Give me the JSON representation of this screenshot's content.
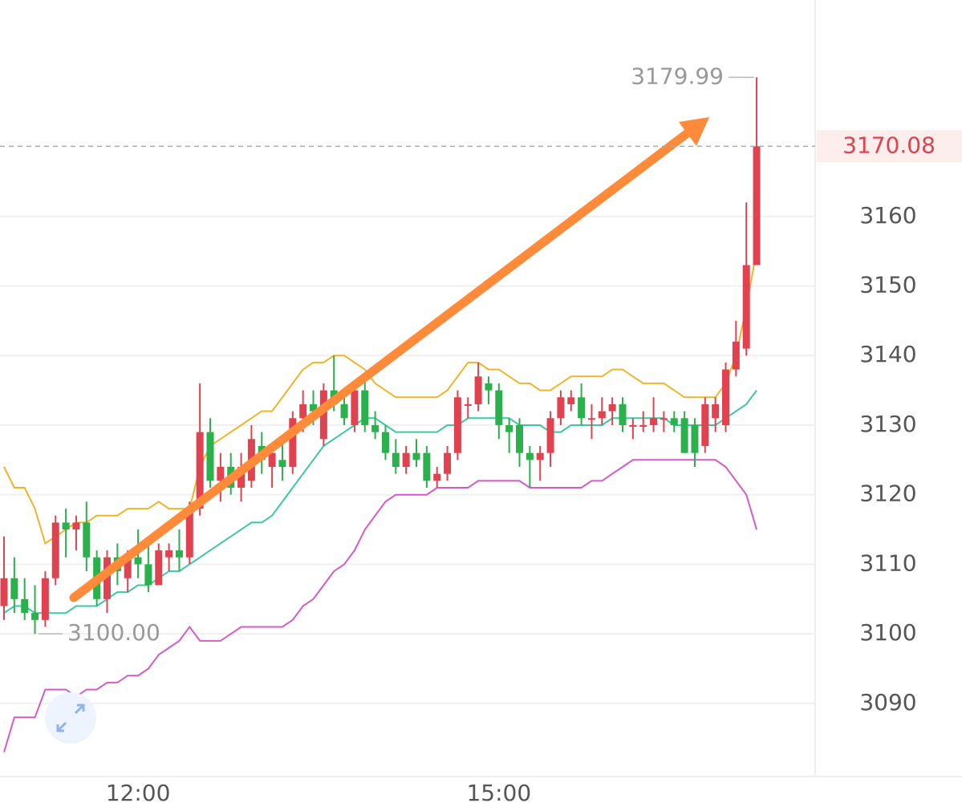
{
  "chart_data": {
    "type": "candlestick",
    "categories": [
      null,
      null,
      null,
      null,
      null,
      null,
      null,
      null,
      null,
      null,
      null,
      null,
      null,
      "12:00",
      null,
      null,
      null,
      null,
      null,
      null,
      null,
      null,
      null,
      null,
      null,
      null,
      null,
      null,
      null,
      null,
      null,
      null,
      null,
      null,
      null,
      null,
      null,
      null,
      null,
      null,
      null,
      null,
      null,
      null,
      null,
      null,
      null,
      null,
      "15:00",
      null,
      null,
      null,
      null,
      null,
      null,
      null,
      null,
      null,
      null,
      null,
      null,
      null,
      null,
      null,
      null,
      null,
      null,
      null,
      null,
      null,
      null,
      null,
      null,
      null
    ],
    "open": [
      3104,
      3108,
      3105,
      3103,
      3102,
      3108,
      3116,
      3115,
      3116,
      3111,
      3105,
      3111,
      3108,
      3111,
      3110,
      3107,
      3111,
      3112,
      3111,
      3118,
      3129,
      3122,
      3124,
      3121,
      3122,
      3127,
      3124,
      3125,
      3124,
      3131,
      3133,
      3128,
      3135,
      3133,
      3130,
      3135,
      3130,
      3129,
      3126,
      3124,
      3126,
      3126,
      3122,
      3123,
      3126,
      3133,
      3133,
      3136,
      3135,
      3130,
      3130,
      3126,
      3125,
      3126,
      3131,
      3133,
      3134,
      3131,
      3131,
      3132,
      3133,
      3130,
      3130,
      3130,
      3131,
      3131,
      3131,
      3130,
      3127,
      3131,
      3130,
      3138,
      3141,
      3153
    ],
    "high": [
      3114,
      3111,
      3108,
      3107,
      3109,
      3117,
      3118,
      3117,
      3119,
      3112,
      3112,
      3113,
      3112,
      3115,
      3113,
      3113,
      3113,
      3115,
      3119,
      3136,
      3131,
      3126,
      3126,
      3126,
      3130,
      3129,
      3127,
      3128,
      3132,
      3135,
      3135,
      3136,
      3140,
      3135,
      3136,
      3137,
      3132,
      3130,
      3128,
      3127,
      3128,
      3127,
      3124,
      3127,
      3135,
      3134,
      3139,
      3137,
      3136,
      3131,
      3131,
      3127,
      3127,
      3132,
      3135,
      3135,
      3136,
      3133,
      3134,
      3134,
      3134,
      3131,
      3132,
      3134,
      3132,
      3132,
      3132,
      3131,
      3134,
      3134,
      3139,
      3145,
      3162,
      3179.99
    ],
    "low": [
      3102,
      3103,
      3102,
      3100,
      3101,
      3107,
      3111,
      3112,
      3109,
      3104,
      3103,
      3107,
      3106,
      3108,
      3106,
      3107,
      3109,
      3109,
      3110,
      3117,
      3121,
      3119,
      3120,
      3119,
      3121,
      3123,
      3121,
      3122,
      3123,
      3129,
      3130,
      3127,
      3132,
      3130,
      3129,
      3129,
      3128,
      3125,
      3123,
      3123,
      3124,
      3121,
      3121,
      3122,
      3125,
      3131,
      3132,
      3133,
      3128,
      3126,
      3124,
      3121,
      3122,
      3124,
      3130,
      3132,
      3130,
      3128,
      3130,
      3130,
      3129,
      3128,
      3129,
      3129,
      3129,
      3129,
      3126,
      3124,
      3126,
      3129,
      3129,
      3137,
      3140,
      3153
    ],
    "close": [
      3108,
      3105,
      3103,
      3102,
      3108,
      3116,
      3115,
      3116,
      3111,
      3105,
      3111,
      3109,
      3111,
      3110,
      3107,
      3112,
      3112,
      3111,
      3118,
      3129,
      3122,
      3124,
      3121,
      3124,
      3128,
      3125,
      3126,
      3124,
      3131,
      3133,
      3132,
      3135,
      3133,
      3131,
      3135,
      3130,
      3129,
      3126,
      3124,
      3126,
      3125,
      3122,
      3123,
      3126,
      3134,
      3133,
      3137,
      3135,
      3130,
      3129,
      3126,
      3125,
      3126,
      3131,
      3134,
      3134,
      3131,
      3131,
      3132,
      3133,
      3130,
      3130,
      3130,
      3131,
      3131,
      3130,
      3126,
      3126,
      3133,
      3133,
      3138,
      3142,
      3153,
      3170.08
    ],
    "up_color": "#e0434f",
    "down_color": "#2bb14b",
    "series": [
      {
        "color": "#f0b429",
        "values": [
          3124,
          3121,
          3121,
          3118,
          3113,
          3114,
          3115,
          3116,
          3116,
          3117,
          3117,
          3117,
          3118,
          3118,
          3118,
          3119,
          3118,
          3118,
          3118,
          3124,
          3127,
          3128,
          3129,
          3130,
          3131,
          3132,
          3132,
          3134,
          3136,
          3138,
          3139,
          3139,
          3140,
          3140,
          3139,
          3138,
          3136,
          3135,
          3134,
          3134,
          3134,
          3134,
          3134,
          3135,
          3137,
          3139,
          3139,
          3138,
          3138,
          3137,
          3136,
          3136,
          3135,
          3135,
          3136,
          3137,
          3137,
          3137,
          3137,
          3138,
          3138,
          3137,
          3136,
          3136,
          3136,
          3135,
          3134,
          3134,
          3134,
          3134,
          3136,
          3140,
          3147,
          3155
        ]
      },
      {
        "color": "#3cc8a5",
        "values": [
          3103,
          3104,
          3104,
          3103,
          3103,
          3103,
          3103,
          3104,
          3104,
          3104,
          3105,
          3106,
          3106,
          3107,
          3107,
          3108,
          3109,
          3109,
          3110,
          3111,
          3112,
          3113,
          3114,
          3115,
          3116,
          3116,
          3117,
          3119,
          3121,
          3123,
          3125,
          3127,
          3128,
          3129,
          3130,
          3131,
          3131,
          3130,
          3129,
          3129,
          3129,
          3129,
          3129,
          3130,
          3130,
          3131,
          3131,
          3131,
          3131,
          3131,
          3130,
          3130,
          3130,
          3129,
          3129,
          3130,
          3130,
          3130,
          3130,
          3131,
          3131,
          3131,
          3131,
          3131,
          3131,
          3130,
          3130,
          3130,
          3130,
          3130,
          3131,
          3132,
          3133,
          3135
        ]
      },
      {
        "color": "#d65ac8",
        "values": [
          3083,
          3088,
          3088,
          3088,
          3092,
          3092,
          3092,
          3091,
          3092,
          3092,
          3093,
          3093,
          3094,
          3094,
          3095,
          3097,
          3098,
          3099,
          3101,
          3099,
          3099,
          3099,
          3100,
          3101,
          3101,
          3101,
          3101,
          3101,
          3102,
          3104,
          3105,
          3107,
          3109,
          3110,
          3112,
          3115,
          3117,
          3119,
          3120,
          3120,
          3120,
          3120,
          3121,
          3121,
          3121,
          3121,
          3122,
          3122,
          3122,
          3122,
          3122,
          3121,
          3121,
          3121,
          3121,
          3121,
          3121,
          3122,
          3122,
          3123,
          3124,
          3125,
          3125,
          3125,
          3125,
          3125,
          3125,
          3125,
          3125,
          3125,
          3124,
          3122,
          3120,
          3115
        ]
      }
    ],
    "ylim": [
      3079.5,
      3191.1
    ],
    "yticks": [
      3090,
      3100,
      3110,
      3120,
      3130,
      3140,
      3150,
      3160
    ],
    "grid": true,
    "annotations": {
      "max": {
        "value": 3179.99,
        "label": "3179.99"
      },
      "min": {
        "value": 3100,
        "label": "3100.00"
      },
      "last": {
        "value": 3170.08,
        "label": "3170.08"
      }
    }
  }
}
